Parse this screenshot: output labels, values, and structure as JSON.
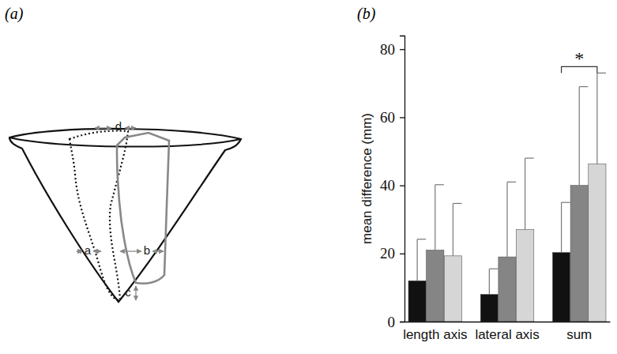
{
  "diagram": {
    "panel_label": "(a)",
    "labels": [
      "a",
      "b",
      "c",
      "d"
    ]
  },
  "chart_data": {
    "type": "bar",
    "panel_label": "(b)",
    "y_label": "mean difference (mm)",
    "categories": [
      "length axis",
      "lateral axis",
      "sum"
    ],
    "series": [
      {
        "color": "#111111",
        "values": [
          12,
          8,
          20.3
        ],
        "errors": [
          12.2,
          7.5,
          14.7
        ]
      },
      {
        "color": "#858585",
        "values": [
          21,
          19,
          40
        ],
        "errors": [
          19.2,
          22,
          29
        ]
      },
      {
        "color": "#d6d6d6",
        "values": [
          19.3,
          27,
          46.3
        ],
        "errors": [
          15.4,
          21,
          26.7
        ]
      }
    ],
    "ylim": [
      0,
      84
    ],
    "yticks": [
      0,
      20,
      40,
      60,
      80
    ],
    "annotations": [
      {
        "text": "*",
        "category": 2,
        "between": [
          0,
          2
        ]
      }
    ]
  }
}
